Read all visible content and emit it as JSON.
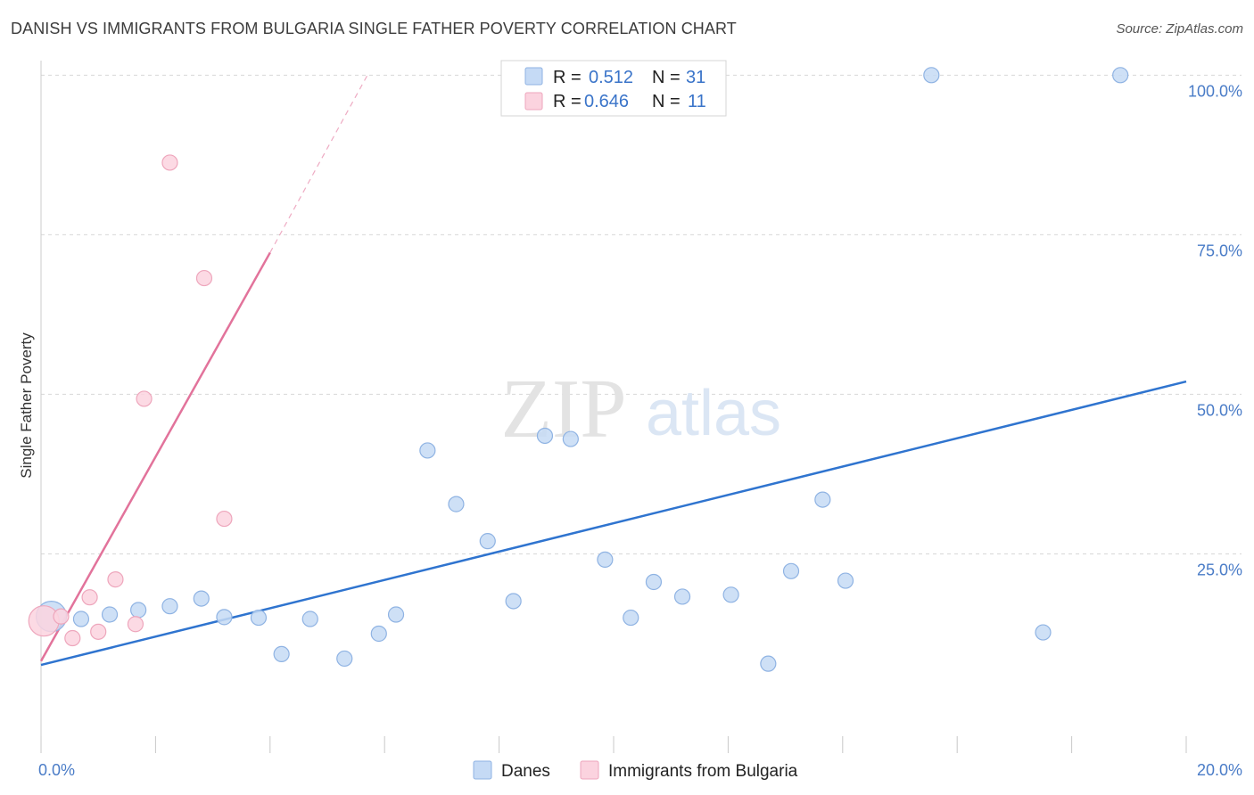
{
  "title": "DANISH VS IMMIGRANTS FROM BULGARIA SINGLE FATHER POVERTY CORRELATION CHART",
  "source": "Source: ZipAtlas.com",
  "watermark": {
    "zip": "ZIP",
    "atlas": "atlas"
  },
  "colors": {
    "danes_fill": "#c5daf5",
    "danes_stroke": "#8fb3e3",
    "danes_line": "#2f74cf",
    "bulgaria_fill": "#fbd3df",
    "bulgaria_stroke": "#eea6bc",
    "bulgaria_line": "#e2739b",
    "grid": "#d8d8d8",
    "axis_label": "#4a7cc7"
  },
  "legend": {
    "r_label": "R =",
    "n_label": "N =",
    "danes": {
      "r": "0.512",
      "n": "31"
    },
    "bulgaria": {
      "r": "0.646",
      "n": "11"
    }
  },
  "chart_data": {
    "type": "scatter",
    "title": "DANISH VS IMMIGRANTS FROM BULGARIA SINGLE FATHER POVERTY CORRELATION CHART",
    "xlabel": "",
    "ylabel": "Single Father Poverty",
    "xlim": [
      0,
      20
    ],
    "ylim": [
      -3,
      102
    ],
    "x_tick_labels": {
      "min": "0.0%",
      "max": "20.0%"
    },
    "y_ticks": [
      25,
      50,
      75,
      100
    ],
    "y_tick_labels": [
      "25.0%",
      "50.0%",
      "75.0%",
      "100.0%"
    ],
    "legend_position": "top-center",
    "series": [
      {
        "name": "Danes",
        "points": [
          {
            "x": 0.18,
            "y": 15.2,
            "big": true
          },
          {
            "x": 0.7,
            "y": 14.8
          },
          {
            "x": 1.2,
            "y": 15.5
          },
          {
            "x": 1.7,
            "y": 16.2
          },
          {
            "x": 2.25,
            "y": 16.8
          },
          {
            "x": 2.8,
            "y": 18.0
          },
          {
            "x": 3.2,
            "y": 15.1
          },
          {
            "x": 3.8,
            "y": 15.0
          },
          {
            "x": 4.2,
            "y": 9.3
          },
          {
            "x": 4.7,
            "y": 14.8
          },
          {
            "x": 5.3,
            "y": 8.6
          },
          {
            "x": 5.9,
            "y": 12.5
          },
          {
            "x": 6.2,
            "y": 15.5
          },
          {
            "x": 6.75,
            "y": 41.2
          },
          {
            "x": 7.25,
            "y": 32.8
          },
          {
            "x": 7.8,
            "y": 27.0
          },
          {
            "x": 8.25,
            "y": 17.6
          },
          {
            "x": 8.8,
            "y": 43.5
          },
          {
            "x": 9.25,
            "y": 43.0
          },
          {
            "x": 9.85,
            "y": 24.1
          },
          {
            "x": 10.3,
            "y": 15.0
          },
          {
            "x": 10.7,
            "y": 20.6
          },
          {
            "x": 11.2,
            "y": 18.3
          },
          {
            "x": 12.05,
            "y": 18.6
          },
          {
            "x": 12.7,
            "y": 7.8
          },
          {
            "x": 13.1,
            "y": 22.3
          },
          {
            "x": 13.65,
            "y": 33.5
          },
          {
            "x": 14.05,
            "y": 20.8
          },
          {
            "x": 15.55,
            "y": 100.0
          },
          {
            "x": 17.5,
            "y": 12.7
          },
          {
            "x": 18.85,
            "y": 100.0
          }
        ],
        "trend": {
          "x0": 0.0,
          "y0": 7.6,
          "x1": 20.0,
          "y1": 52.0
        }
      },
      {
        "name": "Immigrants from Bulgaria",
        "points": [
          {
            "x": 0.05,
            "y": 14.5,
            "big": true
          },
          {
            "x": 0.35,
            "y": 15.2
          },
          {
            "x": 0.55,
            "y": 11.8
          },
          {
            "x": 0.85,
            "y": 18.2
          },
          {
            "x": 1.0,
            "y": 12.8
          },
          {
            "x": 1.3,
            "y": 21.0
          },
          {
            "x": 1.65,
            "y": 14.0
          },
          {
            "x": 1.8,
            "y": 49.3
          },
          {
            "x": 2.25,
            "y": 86.3
          },
          {
            "x": 2.85,
            "y": 68.2
          },
          {
            "x": 3.2,
            "y": 30.5
          }
        ],
        "trend": {
          "x0": 0.0,
          "y0": 8.2,
          "x1": 4.0,
          "y1": 72.2
        },
        "trend_dashed": {
          "x0": 4.0,
          "y0": 72.2,
          "x1": 5.7,
          "y1": 100.0
        }
      }
    ]
  }
}
